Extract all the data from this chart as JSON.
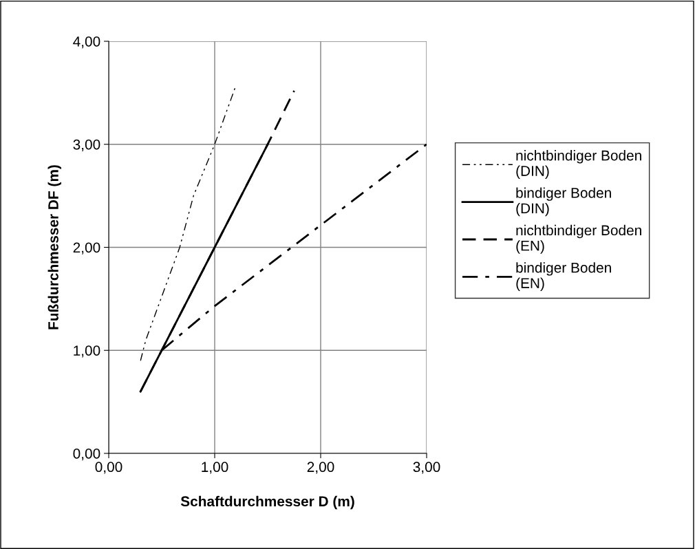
{
  "chart_data": {
    "type": "line",
    "xlabel": "Schaftdurchmesser D (m)",
    "ylabel": "Fußdurchmesser DF (m)",
    "xlim": [
      0,
      3
    ],
    "ylim": [
      0,
      4
    ],
    "xticks": [
      {
        "value": 0,
        "label": "0,00"
      },
      {
        "value": 1,
        "label": "1,00"
      },
      {
        "value": 2,
        "label": "2,00"
      },
      {
        "value": 3,
        "label": "3,00"
      }
    ],
    "yticks": [
      {
        "value": 0,
        "label": "0,00"
      },
      {
        "value": 1,
        "label": "1,00"
      },
      {
        "value": 2,
        "label": "2,00"
      },
      {
        "value": 3,
        "label": "3,00"
      },
      {
        "value": 4,
        "label": "4,00"
      }
    ],
    "grid": true,
    "legend": "right",
    "marker": "none",
    "series": [
      {
        "name": "nichtbindiger Boden\n(DIN)",
        "color": "#000000",
        "line_style": "dashdotdot",
        "x": [
          0.3,
          0.35,
          0.67,
          0.8,
          1.0,
          1.2
        ],
        "values": [
          0.9,
          1.1,
          2.0,
          2.5,
          3.0,
          3.57
        ]
      },
      {
        "name": "bindiger Boden\n(DIN)",
        "color": "#000000",
        "line_style": "solid",
        "x": [
          0.3,
          1.0,
          1.5
        ],
        "values": [
          0.6,
          2.0,
          3.0
        ]
      },
      {
        "name": "nichtbindiger Boden\n(EN)",
        "color": "#000000",
        "line_style": "dashed",
        "x": [
          0.3,
          0.5,
          1.0,
          1.5,
          1.75
        ],
        "values": [
          0.6,
          1.0,
          2.0,
          3.0,
          3.52
        ]
      },
      {
        "name": "bindiger Boden\n(EN)",
        "color": "#000000",
        "line_style": "dashdot",
        "x": [
          0.5,
          1.0,
          3.0
        ],
        "values": [
          1.0,
          1.43,
          3.0
        ]
      }
    ]
  }
}
